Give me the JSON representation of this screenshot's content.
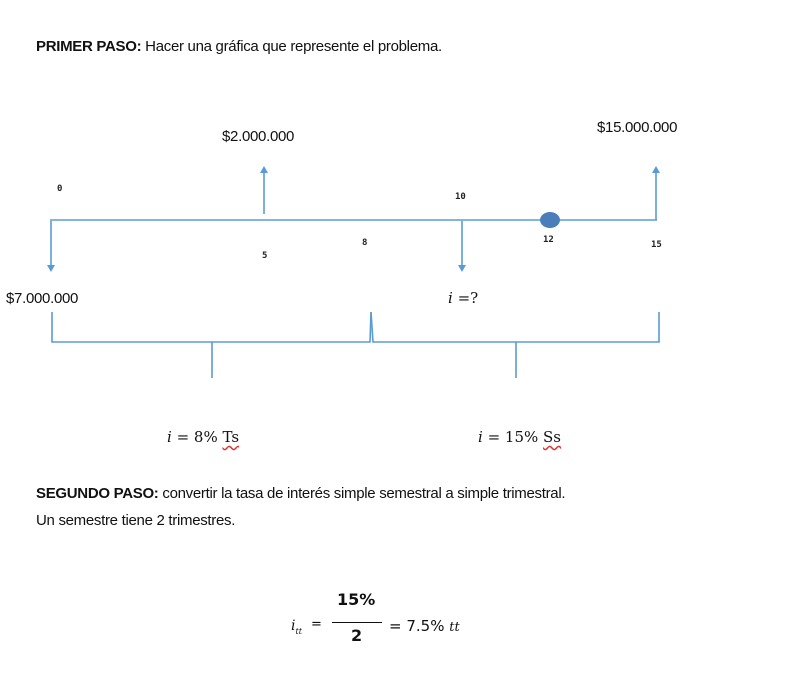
{
  "step1": {
    "label": "PRIMER PASO:",
    "text": "Hacer una gráfica que represente el problema."
  },
  "diagram": {
    "amount_5": "$2.000.000",
    "amount_15": "$15.000.000",
    "amount_0": "$7.000.000",
    "ticks": {
      "t0": "0",
      "t5": "5",
      "t8": "8",
      "t10": "10",
      "t12": "12",
      "t15": "15"
    },
    "unknown_rate": {
      "sym": "i",
      "rest": " =?"
    },
    "rate_left": {
      "sym": "i",
      "value": " = 8% ",
      "unit": "Ts"
    },
    "rate_right": {
      "sym": "i",
      "value": " = 15% ",
      "unit": "Ss"
    },
    "colors": {
      "line": "#5b9bd5",
      "dot": "#4a7ebb"
    }
  },
  "step2": {
    "label": "SEGUNDO PASO:",
    "text": "convertir la tasa de interés simple semestral a simple trimestral.",
    "line2": "Un semestre tiene 2 trimestres."
  },
  "formula": {
    "lhs": "i",
    "lhs_sub": "tt",
    "eq": "=",
    "numerator": "15%",
    "denominator": "2",
    "result": "= 7.5%",
    "result_unit": "tt"
  }
}
